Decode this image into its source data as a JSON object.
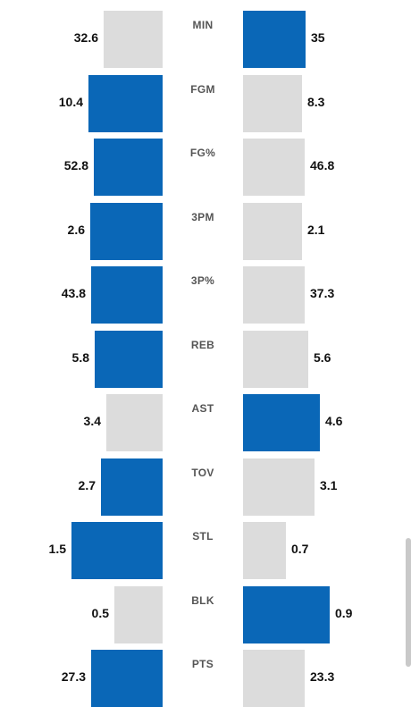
{
  "stats": [
    {
      "label": "MIN",
      "left": "32.6",
      "right": "35",
      "left_bar_level": 0.48,
      "right_bar_level": 0.51,
      "winner": "right"
    },
    {
      "label": "FGM",
      "left": "10.4",
      "right": "8.3",
      "left_bar_level": 0.6,
      "right_bar_level": 0.48,
      "winner": "left"
    },
    {
      "label": "FG%",
      "left": "52.8",
      "right": "46.8",
      "left_bar_level": 0.56,
      "right_bar_level": 0.5,
      "winner": "left"
    },
    {
      "label": "3PM",
      "left": "2.6",
      "right": "2.1",
      "left_bar_level": 0.59,
      "right_bar_level": 0.48,
      "winner": "left"
    },
    {
      "label": "3P%",
      "left": "43.8",
      "right": "37.3",
      "left_bar_level": 0.58,
      "right_bar_level": 0.5,
      "winner": "left"
    },
    {
      "label": "REB",
      "left": "5.8",
      "right": "5.6",
      "left_bar_level": 0.55,
      "right_bar_level": 0.53,
      "winner": "left"
    },
    {
      "label": "AST",
      "left": "3.4",
      "right": "4.6",
      "left_bar_level": 0.46,
      "right_bar_level": 0.62,
      "winner": "right"
    },
    {
      "label": "TOV",
      "left": "2.7",
      "right": "3.1",
      "left_bar_level": 0.5,
      "right_bar_level": 0.58,
      "winner": "left"
    },
    {
      "label": "STL",
      "left": "1.5",
      "right": "0.7",
      "left_bar_level": 0.74,
      "right_bar_level": 0.35,
      "winner": "left"
    },
    {
      "label": "BLK",
      "left": "0.5",
      "right": "0.9",
      "left_bar_level": 0.39,
      "right_bar_level": 0.7,
      "winner": "right"
    },
    {
      "label": "PTS",
      "left": "27.3",
      "right": "23.3",
      "left_bar_level": 0.58,
      "right_bar_level": 0.5,
      "winner": "left"
    }
  ],
  "colors": {
    "winner_bar": "#0a67b7",
    "other_bar": "#dcdcdc"
  }
}
